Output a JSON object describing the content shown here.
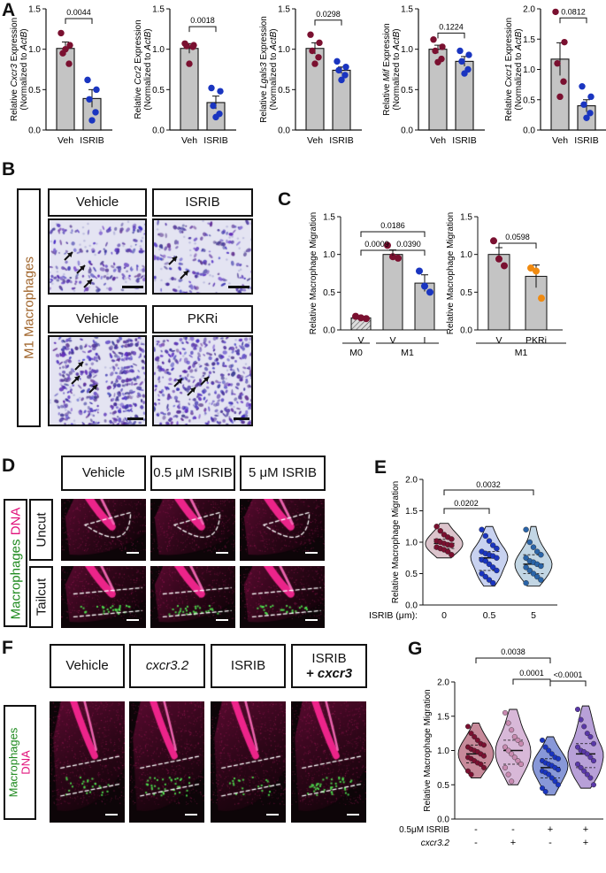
{
  "panels": {
    "A": "A",
    "B": "B",
    "C": "C",
    "D": "D",
    "E": "E",
    "F": "F",
    "G": "G"
  },
  "panelA": [
    {
      "gene": "Cxcr3",
      "ylabel_pre": "Relative ",
      "ylabel_gene": "Cxcr3",
      "ylabel_post": " Expression",
      "ylabel2_pre": "(Normalized to ",
      "ylabel2_it": "ActB",
      "ylabel2_post": ")",
      "ymax": 1.5,
      "ticks": [
        "0.0",
        "0.5",
        "1.0",
        "1.5"
      ],
      "categories": [
        "Veh",
        "ISRIB"
      ],
      "means": [
        1.01,
        0.39
      ],
      "sem": [
        0.08,
        0.11
      ],
      "points": [
        [
          1.2,
          1.05,
          0.95,
          0.82,
          1.0
        ],
        [
          0.62,
          0.5,
          0.38,
          0.22,
          0.12
        ]
      ],
      "p": "0.0044",
      "bracketY": 1.38
    },
    {
      "gene": "Ccr2",
      "ylabel_pre": "Relative ",
      "ylabel_gene": "Ccr2",
      "ylabel_post": " Expression",
      "ylabel2_pre": "(Normalized to ",
      "ylabel2_it": "ActB",
      "ylabel2_post": ")",
      "ymax": 1.5,
      "ticks": [
        "0.0",
        "0.5",
        "1.0",
        "1.5"
      ],
      "categories": [
        "Veh",
        "ISRIB"
      ],
      "means": [
        1.01,
        0.34
      ],
      "sem": [
        0.06,
        0.08
      ],
      "points": [
        [
          1.07,
          1.05,
          1.04,
          1.03,
          0.82
        ],
        [
          0.52,
          0.48,
          0.3,
          0.2,
          0.16
        ]
      ],
      "p": "0.0018",
      "bracketY": 1.28
    },
    {
      "gene": "Lgals3",
      "ylabel_pre": "Relative ",
      "ylabel_gene": "Lgals3",
      "ylabel_post": " Expression",
      "ylabel2_pre": "(Normalized to ",
      "ylabel2_it": "ActB",
      "ylabel2_post": ")",
      "ymax": 1.5,
      "ticks": [
        "0.0",
        "0.5",
        "1.0",
        "1.5"
      ],
      "categories": [
        "Veh",
        "ISRIB"
      ],
      "means": [
        1.01,
        0.74
      ],
      "sem": [
        0.07,
        0.04
      ],
      "points": [
        [
          1.18,
          1.08,
          0.98,
          0.9,
          0.82
        ],
        [
          0.85,
          0.78,
          0.74,
          0.68,
          0.62
        ]
      ],
      "p": "0.0298",
      "bracketY": 1.36
    },
    {
      "gene": "Mif",
      "ylabel_pre": "Relative ",
      "ylabel_gene": "Mif",
      "ylabel_post": " Expression",
      "ylabel2_pre": "(Normalized to ",
      "ylabel2_it": "ActB",
      "ylabel2_post": ")",
      "ymax": 1.5,
      "ticks": [
        "0.0",
        "0.5",
        "1.0",
        "1.5"
      ],
      "categories": [
        "Veh",
        "ISRIB"
      ],
      "means": [
        1.0,
        0.85
      ],
      "sem": [
        0.05,
        0.06
      ],
      "points": [
        [
          1.12,
          1.03,
          0.98,
          0.88,
          0.84
        ],
        [
          0.98,
          0.93,
          0.85,
          0.75,
          0.7
        ]
      ],
      "p": "0.1224",
      "bracketY": 1.2
    },
    {
      "gene": "Cxcr1",
      "ylabel_pre": "Relative ",
      "ylabel_gene": "Cxcr1",
      "ylabel_post": " Expression",
      "ylabel2_pre": "(Normalized to ",
      "ylabel2_it": "ActB",
      "ylabel2_post": ")",
      "ymax": 2.0,
      "ticks": [
        "0.0",
        "0.5",
        "1.0",
        "1.5",
        "2.0"
      ],
      "categories": [
        "Veh",
        "ISRIB"
      ],
      "means": [
        1.17,
        0.4
      ],
      "sem": [
        0.27,
        0.1
      ],
      "points": [
        [
          1.95,
          1.45,
          1.1,
          0.8,
          0.55
        ],
        [
          0.72,
          0.55,
          0.42,
          0.28,
          0.2
        ]
      ],
      "p": "0.0812",
      "bracketY": 1.85
    }
  ],
  "panelB": {
    "side_label": "M1 Macrophages",
    "labels": [
      "Vehicle",
      "ISRIB",
      "Vehicle",
      "PKRi"
    ]
  },
  "panelC": {
    "ylabel": "Relative Macrophage Migration",
    "left": {
      "ticks": [
        "0.0",
        "0.5",
        "1.0",
        "1.5"
      ],
      "categories": [
        "V",
        "V",
        "I"
      ],
      "groups": [
        {
          "label": "M0"
        },
        {
          "label": "M1"
        }
      ],
      "means": [
        0.16,
        1.0,
        0.62
      ],
      "sem": [
        0.02,
        0.06,
        0.11
      ],
      "points": [
        [
          0.18,
          0.16,
          0.15
        ],
        [
          1.12,
          0.97,
          0.95
        ],
        [
          0.78,
          0.58,
          0.5
        ]
      ],
      "p": [
        {
          "text": "0.0186"
        },
        {
          "text": "0.0009"
        },
        {
          "text": "0.0390"
        }
      ]
    },
    "right": {
      "ticks": [
        "0.0",
        "0.5",
        "1.0",
        "1.5"
      ],
      "categories": [
        "V",
        "PKRi"
      ],
      "groups": [
        {
          "label": "M1"
        }
      ],
      "means": [
        1.0,
        0.71
      ],
      "sem": [
        0.09,
        0.15
      ],
      "points": [
        [
          1.18,
          0.94,
          0.85
        ],
        [
          0.82,
          0.78,
          0.42
        ]
      ],
      "p": [
        {
          "text": "0.0598"
        }
      ]
    }
  },
  "panelD": {
    "headers": [
      "Vehicle",
      "0.5 μM ISRIB",
      "5 μM ISRIB"
    ],
    "rows": [
      "Uncut",
      "Tailcut"
    ],
    "side_green": "Macrophages",
    "side_pink": "DNA"
  },
  "panelE": {
    "ylabel": "Relative Macrophage Migration",
    "xlabel": "ISRIB (μm):",
    "categories": [
      "0",
      "0.5",
      "5"
    ],
    "ticks": [
      "0.0",
      "0.5",
      "1.0",
      "1.5",
      "2.0"
    ],
    "p": [
      {
        "text": "0.0202"
      },
      {
        "text": "0.0032"
      }
    ],
    "points": [
      [
        1.25,
        1.18,
        1.12,
        1.08,
        1.05,
        1.02,
        1.0,
        0.98,
        0.96,
        0.95,
        0.92,
        0.9,
        0.88,
        0.85,
        0.8
      ],
      [
        1.2,
        1.1,
        1.02,
        0.95,
        0.9,
        0.85,
        0.82,
        0.8,
        0.78,
        0.75,
        0.72,
        0.7,
        0.65,
        0.6,
        0.55,
        0.5,
        0.45,
        0.4,
        0.35
      ],
      [
        1.2,
        1.0,
        0.92,
        0.85,
        0.8,
        0.75,
        0.7,
        0.68,
        0.65,
        0.62,
        0.6,
        0.55,
        0.5,
        0.45,
        0.4,
        0.35
      ]
    ]
  },
  "panelF": {
    "headers": [
      "Vehicle",
      "cxcr3.2",
      "ISRIB",
      "ISRIB",
      "+ cxcr3"
    ],
    "side_green": "Macrophages",
    "side_pink": "DNA"
  },
  "panelG": {
    "ylabel": "Relative Macrophage Migration",
    "ticks": [
      "0.0",
      "0.5",
      "1.0",
      "1.5",
      "2.0"
    ],
    "row1": {
      "label": "0.5μM ISRIB",
      "values": [
        "-",
        "-",
        "+",
        "+"
      ]
    },
    "row2": {
      "label": "cxcr3.2",
      "values": [
        "-",
        "+",
        "-",
        "+"
      ]
    },
    "p": [
      {
        "text": "0.0038"
      },
      {
        "text": "0.0001"
      },
      {
        "text": "<0.0001"
      }
    ],
    "points": [
      [
        1.35,
        1.25,
        1.2,
        1.15,
        1.1,
        1.08,
        1.05,
        1.02,
        1.0,
        0.98,
        0.95,
        0.92,
        0.9,
        0.88,
        0.85,
        0.82,
        0.8,
        0.75,
        0.7,
        0.65
      ],
      [
        1.55,
        1.4,
        1.3,
        1.2,
        1.15,
        1.1,
        1.05,
        1.0,
        0.95,
        0.9,
        0.85,
        0.8,
        0.75,
        0.65,
        0.55
      ],
      [
        1.15,
        1.05,
        1.0,
        0.95,
        0.9,
        0.88,
        0.85,
        0.82,
        0.8,
        0.78,
        0.75,
        0.72,
        0.7,
        0.68,
        0.65,
        0.6,
        0.55,
        0.5,
        0.45,
        0.4
      ],
      [
        1.6,
        1.45,
        1.35,
        1.25,
        1.2,
        1.1,
        1.05,
        1.0,
        0.98,
        0.95,
        0.9,
        0.85,
        0.8,
        0.75,
        0.7,
        0.65,
        0.6,
        0.5
      ]
    ]
  }
}
